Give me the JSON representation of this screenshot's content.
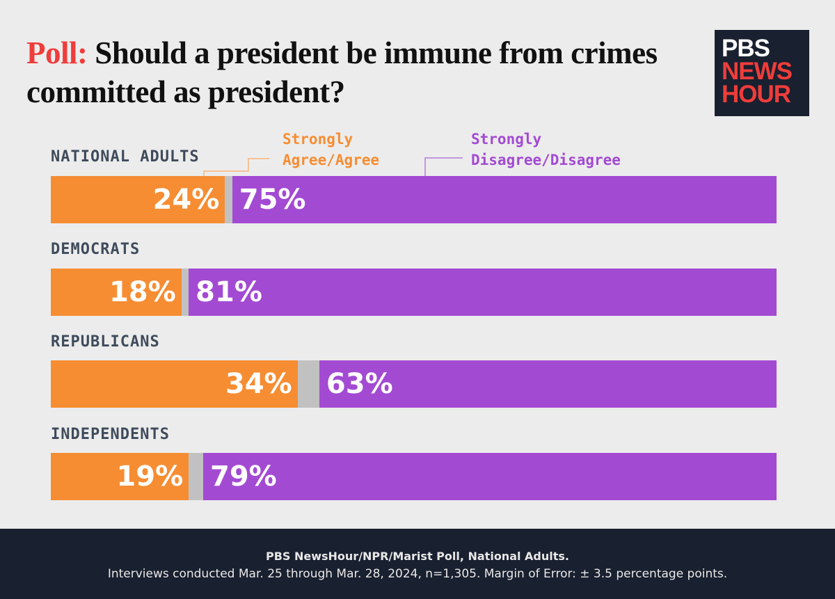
{
  "title": {
    "lead": "Poll:",
    "text": " Should a president be immune from crimes committed as president?"
  },
  "logo": {
    "line1": "PBS",
    "line2": "NEWS",
    "line3": "HOUR"
  },
  "colors": {
    "agree": "#f68d32",
    "disagree": "#a34ad3",
    "other": "#c1c1c1",
    "title_accent": "#ef3d3b"
  },
  "chart_data": {
    "type": "bar",
    "stacked": true,
    "orientation": "horizontal",
    "title": "Should a president be immune from crimes committed as president?",
    "categories": [
      "NATIONAL ADULTS",
      "DEMOCRATS",
      "REPUBLICANS",
      "INDEPENDENTS"
    ],
    "series": [
      {
        "name": "Strongly Agree/Agree",
        "values": [
          24,
          18,
          34,
          19
        ]
      },
      {
        "name": "Strongly Disagree/Disagree",
        "values": [
          75,
          81,
          63,
          79
        ]
      }
    ],
    "value_labels": {
      "agree": [
        "24%",
        "18%",
        "34%",
        "19%"
      ],
      "disagree": [
        "75%",
        "81%",
        "63%",
        "79%"
      ]
    },
    "legend": {
      "agree_line1": "Strongly",
      "agree_line2": "Agree/Agree",
      "disagree_line1": "Strongly",
      "disagree_line2": "Disagree/Disagree",
      "placement": "top"
    },
    "xlim": [
      0,
      100
    ]
  },
  "footer": {
    "line1": "PBS NewsHour/NPR/Marist Poll, National Adults.",
    "line2": "Interviews conducted Mar. 25 through Mar. 28, 2024, n=1,305. Margin of Error:  ± 3.5 percentage points."
  }
}
